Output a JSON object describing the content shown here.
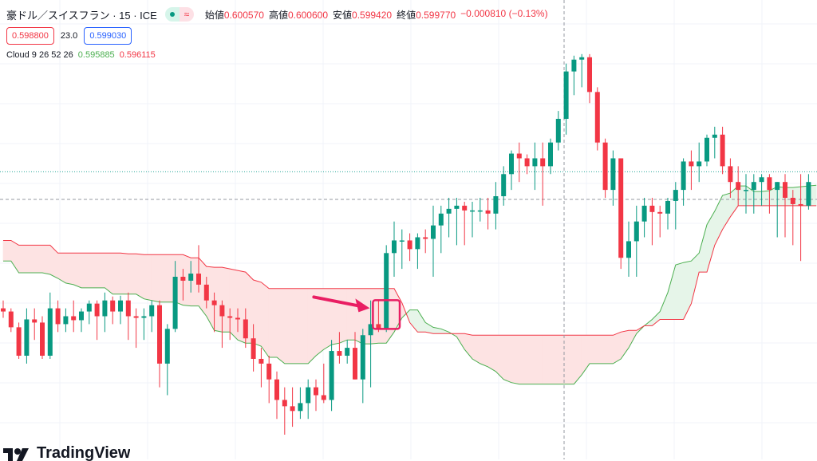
{
  "header": {
    "symbol": "豪ドル／スイスフラン · 15 · ICE",
    "ohlc": [
      {
        "label": "始値",
        "value": "0.600570"
      },
      {
        "label": "高値",
        "value": "0.600600"
      },
      {
        "label": "安値",
        "value": "0.599420"
      },
      {
        "label": "終値",
        "value": "0.599770"
      }
    ],
    "change": "−0.000810 (−0.13%)"
  },
  "trade": {
    "sell": "0.598800",
    "spread": "23.0",
    "buy": "0.599030"
  },
  "indicator": {
    "name": "Cloud 9 26 52 26",
    "value1": "0.595885",
    "value2": "0.596115"
  },
  "logo": {
    "text": "TradingView"
  },
  "colors": {
    "up": "#089981",
    "down": "#f23645",
    "cloud_bull_fill": "#e6f5e9",
    "cloud_bear_fill": "#fde3e3",
    "span_a": "#4caf50",
    "span_b": "#f23645",
    "highlight": "#e91e63"
  },
  "chart_data": {
    "type": "candlestick",
    "candles": [
      [
        0.586,
        0.587,
        0.5848,
        0.5856
      ],
      [
        0.5856,
        0.586,
        0.583,
        0.5836
      ],
      [
        0.5836,
        0.5842,
        0.5796,
        0.58
      ],
      [
        0.58,
        0.586,
        0.579,
        0.5846
      ],
      [
        0.5846,
        0.586,
        0.582,
        0.5842
      ],
      [
        0.5842,
        0.585,
        0.5796,
        0.58
      ],
      [
        0.58,
        0.588,
        0.5796,
        0.586
      ],
      [
        0.586,
        0.587,
        0.583,
        0.584
      ],
      [
        0.584,
        0.586,
        0.583,
        0.585
      ],
      [
        0.585,
        0.587,
        0.583,
        0.5845
      ],
      [
        0.5845,
        0.586,
        0.583,
        0.5856
      ],
      [
        0.5856,
        0.587,
        0.584,
        0.5866
      ],
      [
        0.5866,
        0.587,
        0.582,
        0.585
      ],
      [
        0.585,
        0.588,
        0.583,
        0.587
      ],
      [
        0.587,
        0.5875,
        0.584,
        0.5856
      ],
      [
        0.5856,
        0.5876,
        0.584,
        0.587
      ],
      [
        0.587,
        0.588,
        0.582,
        0.585
      ],
      [
        0.585,
        0.586,
        0.581,
        0.5848
      ],
      [
        0.5848,
        0.586,
        0.582,
        0.585
      ],
      [
        0.585,
        0.587,
        0.583,
        0.5864
      ],
      [
        0.5864,
        0.587,
        0.576,
        0.579
      ],
      [
        0.579,
        0.584,
        0.575,
        0.5834
      ],
      [
        0.5834,
        0.592,
        0.583,
        0.59
      ],
      [
        0.59,
        0.591,
        0.587,
        0.5895
      ],
      [
        0.5895,
        0.592,
        0.588,
        0.5904
      ],
      [
        0.5904,
        0.594,
        0.588,
        0.589
      ],
      [
        0.589,
        0.59,
        0.586,
        0.587
      ],
      [
        0.587,
        0.588,
        0.583,
        0.5864
      ],
      [
        0.5864,
        0.587,
        0.581,
        0.585
      ],
      [
        0.585,
        0.586,
        0.582,
        0.5848
      ],
      [
        0.5848,
        0.586,
        0.583,
        0.5846
      ],
      [
        0.5846,
        0.586,
        0.581,
        0.5822
      ],
      [
        0.5822,
        0.584,
        0.578,
        0.5796
      ],
      [
        0.5796,
        0.581,
        0.576,
        0.579
      ],
      [
        0.579,
        0.58,
        0.574,
        0.577
      ],
      [
        0.577,
        0.578,
        0.572,
        0.5744
      ],
      [
        0.5744,
        0.576,
        0.57,
        0.5736
      ],
      [
        0.5736,
        0.576,
        0.571,
        0.573
      ],
      [
        0.573,
        0.576,
        0.572,
        0.574
      ],
      [
        0.574,
        0.577,
        0.572,
        0.576
      ],
      [
        0.576,
        0.577,
        0.573,
        0.575
      ],
      [
        0.575,
        0.579,
        0.574,
        0.5744
      ],
      [
        0.5744,
        0.582,
        0.573,
        0.5806
      ],
      [
        0.5806,
        0.583,
        0.579,
        0.58
      ],
      [
        0.58,
        0.582,
        0.579,
        0.581
      ],
      [
        0.581,
        0.583,
        0.577,
        0.577
      ],
      [
        0.577,
        0.5834,
        0.574,
        0.5826
      ],
      [
        0.5826,
        0.587,
        0.576,
        0.584
      ],
      [
        0.584,
        0.587,
        0.583,
        0.5834
      ],
      [
        0.5834,
        0.594,
        0.583,
        0.593
      ],
      [
        0.593,
        0.597,
        0.59,
        0.5946
      ],
      [
        0.5946,
        0.596,
        0.591,
        0.5946
      ],
      [
        0.5946,
        0.5955,
        0.592,
        0.5935
      ],
      [
        0.5935,
        0.5955,
        0.591,
        0.595
      ],
      [
        0.595,
        0.596,
        0.593,
        0.5948
      ],
      [
        0.5948,
        0.599,
        0.59,
        0.5965
      ],
      [
        0.5965,
        0.599,
        0.593,
        0.598
      ],
      [
        0.598,
        0.6,
        0.595,
        0.5986
      ],
      [
        0.5986,
        0.6,
        0.594,
        0.599
      ],
      [
        0.599,
        0.5995,
        0.594,
        0.5984
      ],
      [
        0.5984,
        0.5995,
        0.595,
        0.5984
      ],
      [
        0.5984,
        0.6,
        0.597,
        0.5984
      ],
      [
        0.5984,
        0.6,
        0.596,
        0.598
      ],
      [
        0.598,
        0.602,
        0.596,
        0.6002
      ],
      [
        0.6002,
        0.604,
        0.599,
        0.603
      ],
      [
        0.603,
        0.606,
        0.601,
        0.6056
      ],
      [
        0.6056,
        0.607,
        0.602,
        0.605
      ],
      [
        0.605,
        0.6055,
        0.603,
        0.604
      ],
      [
        0.604,
        0.607,
        0.601,
        0.605
      ],
      [
        0.605,
        0.607,
        0.599,
        0.604
      ],
      [
        0.604,
        0.6075,
        0.603,
        0.607
      ],
      [
        0.607,
        0.611,
        0.606,
        0.61
      ],
      [
        0.61,
        0.617,
        0.608,
        0.616
      ],
      [
        0.616,
        0.618,
        0.613,
        0.6175
      ],
      [
        0.6175,
        0.6182,
        0.614,
        0.6178
      ],
      [
        0.6178,
        0.6182,
        0.612,
        0.6134
      ],
      [
        0.6134,
        0.614,
        0.606,
        0.607
      ],
      [
        0.607,
        0.6075,
        0.6,
        0.601
      ],
      [
        0.601,
        0.606,
        0.599,
        0.605
      ],
      [
        0.605,
        0.605,
        0.591,
        0.5924
      ],
      [
        0.5924,
        0.597,
        0.59,
        0.5945
      ],
      [
        0.5945,
        0.599,
        0.59,
        0.597
      ],
      [
        0.597,
        0.6,
        0.595,
        0.599
      ],
      [
        0.599,
        0.6,
        0.594,
        0.5982
      ],
      [
        0.5982,
        0.599,
        0.595,
        0.598
      ],
      [
        0.598,
        0.6,
        0.596,
        0.5996
      ],
      [
        0.5996,
        0.602,
        0.596,
        0.601
      ],
      [
        0.601,
        0.605,
        0.599,
        0.6046
      ],
      [
        0.6046,
        0.606,
        0.601,
        0.604
      ],
      [
        0.604,
        0.607,
        0.602,
        0.6046
      ],
      [
        0.6046,
        0.608,
        0.604,
        0.6076
      ],
      [
        0.6076,
        0.609,
        0.605,
        0.608
      ],
      [
        0.608,
        0.609,
        0.603,
        0.604
      ],
      [
        0.604,
        0.605,
        0.6,
        0.602
      ],
      [
        0.602,
        0.604,
        0.599,
        0.601
      ],
      [
        0.601,
        0.603,
        0.598,
        0.601
      ],
      [
        0.601,
        0.603,
        0.598,
        0.602
      ],
      [
        0.602,
        0.603,
        0.599,
        0.6026
      ],
      [
        0.6026,
        0.603,
        0.598,
        0.601
      ],
      [
        0.601,
        0.602,
        0.595,
        0.602
      ],
      [
        0.602,
        0.603,
        0.595,
        0.6
      ],
      [
        0.6,
        0.601,
        0.594,
        0.5992
      ],
      [
        0.5992,
        0.603,
        0.592,
        0.599
      ],
      [
        0.599,
        0.603,
        0.5985,
        0.602
      ]
    ],
    "span_a": [
      0.592,
      0.592,
      0.5905,
      0.5905,
      0.5905,
      0.5905,
      0.5903,
      0.5898,
      0.5892,
      0.589,
      0.5886,
      0.5886,
      0.5886,
      0.5886,
      0.5878,
      0.5878,
      0.5878,
      0.5878,
      0.5872,
      0.587,
      0.5868,
      0.5868,
      0.5868,
      0.5864,
      0.5863,
      0.5863,
      0.585,
      0.5832,
      0.583,
      0.583,
      0.582,
      0.5816,
      0.5816,
      0.5812,
      0.5798,
      0.5798,
      0.579,
      0.579,
      0.579,
      0.579,
      0.58,
      0.5808,
      0.5814,
      0.5816,
      0.582,
      0.582,
      0.5815,
      0.5815,
      0.5816,
      0.5816,
      0.583,
      0.5848,
      0.5858,
      0.5858,
      0.5842,
      0.5836,
      0.5834,
      0.583,
      0.5824,
      0.5808,
      0.5796,
      0.579,
      0.5786,
      0.578,
      0.577,
      0.5766,
      0.5764,
      0.5764,
      0.5764,
      0.5764,
      0.5764,
      0.5764,
      0.5764,
      0.5764,
      0.5776,
      0.579,
      0.579,
      0.579,
      0.579,
      0.5796,
      0.581,
      0.5828,
      0.5838,
      0.5846,
      0.5856,
      0.588,
      0.5915,
      0.5918,
      0.592,
      0.593,
      0.5966,
      0.5983,
      0.6003,
      0.6006,
      0.6015,
      0.6015,
      0.6008,
      0.6008,
      0.6009,
      0.6014,
      0.6013,
      0.6013,
      0.6014,
      0.6015,
      0.6016
    ],
    "span_b": [
      0.5946,
      0.5946,
      0.594,
      0.594,
      0.594,
      0.594,
      0.594,
      0.593,
      0.593,
      0.593,
      0.593,
      0.593,
      0.593,
      0.593,
      0.593,
      0.593,
      0.5929,
      0.5929,
      0.5928,
      0.5928,
      0.5928,
      0.5928,
      0.5928,
      0.5928,
      0.5924,
      0.5924,
      0.5913,
      0.5912,
      0.5912,
      0.591,
      0.5908,
      0.5906,
      0.5896,
      0.5893,
      0.5885,
      0.5885,
      0.5885,
      0.5885,
      0.5885,
      0.5885,
      0.5885,
      0.5885,
      0.5885,
      0.5885,
      0.5885,
      0.5885,
      0.5885,
      0.5885,
      0.5885,
      0.5885,
      0.5885,
      0.5867,
      0.5842,
      0.583,
      0.583,
      0.5828,
      0.5828,
      0.5828,
      0.5828,
      0.5828,
      0.5826,
      0.5826,
      0.5826,
      0.5826,
      0.5826,
      0.5826,
      0.5826,
      0.5826,
      0.5826,
      0.5826,
      0.5826,
      0.5826,
      0.5826,
      0.5826,
      0.5826,
      0.5826,
      0.5826,
      0.5826,
      0.5826,
      0.583,
      0.5832,
      0.5832,
      0.5838,
      0.5838,
      0.5846,
      0.5846,
      0.5846,
      0.5846,
      0.5866,
      0.5906,
      0.5906,
      0.594,
      0.596,
      0.5976,
      0.599,
      0.599,
      0.599,
      0.599,
      0.599,
      0.599,
      0.599,
      0.599,
      0.599,
      0.599,
      0.599
    ],
    "price_lines": [
      0.6033,
      0.5998
    ],
    "highlight_candles": [
      48,
      50
    ]
  }
}
